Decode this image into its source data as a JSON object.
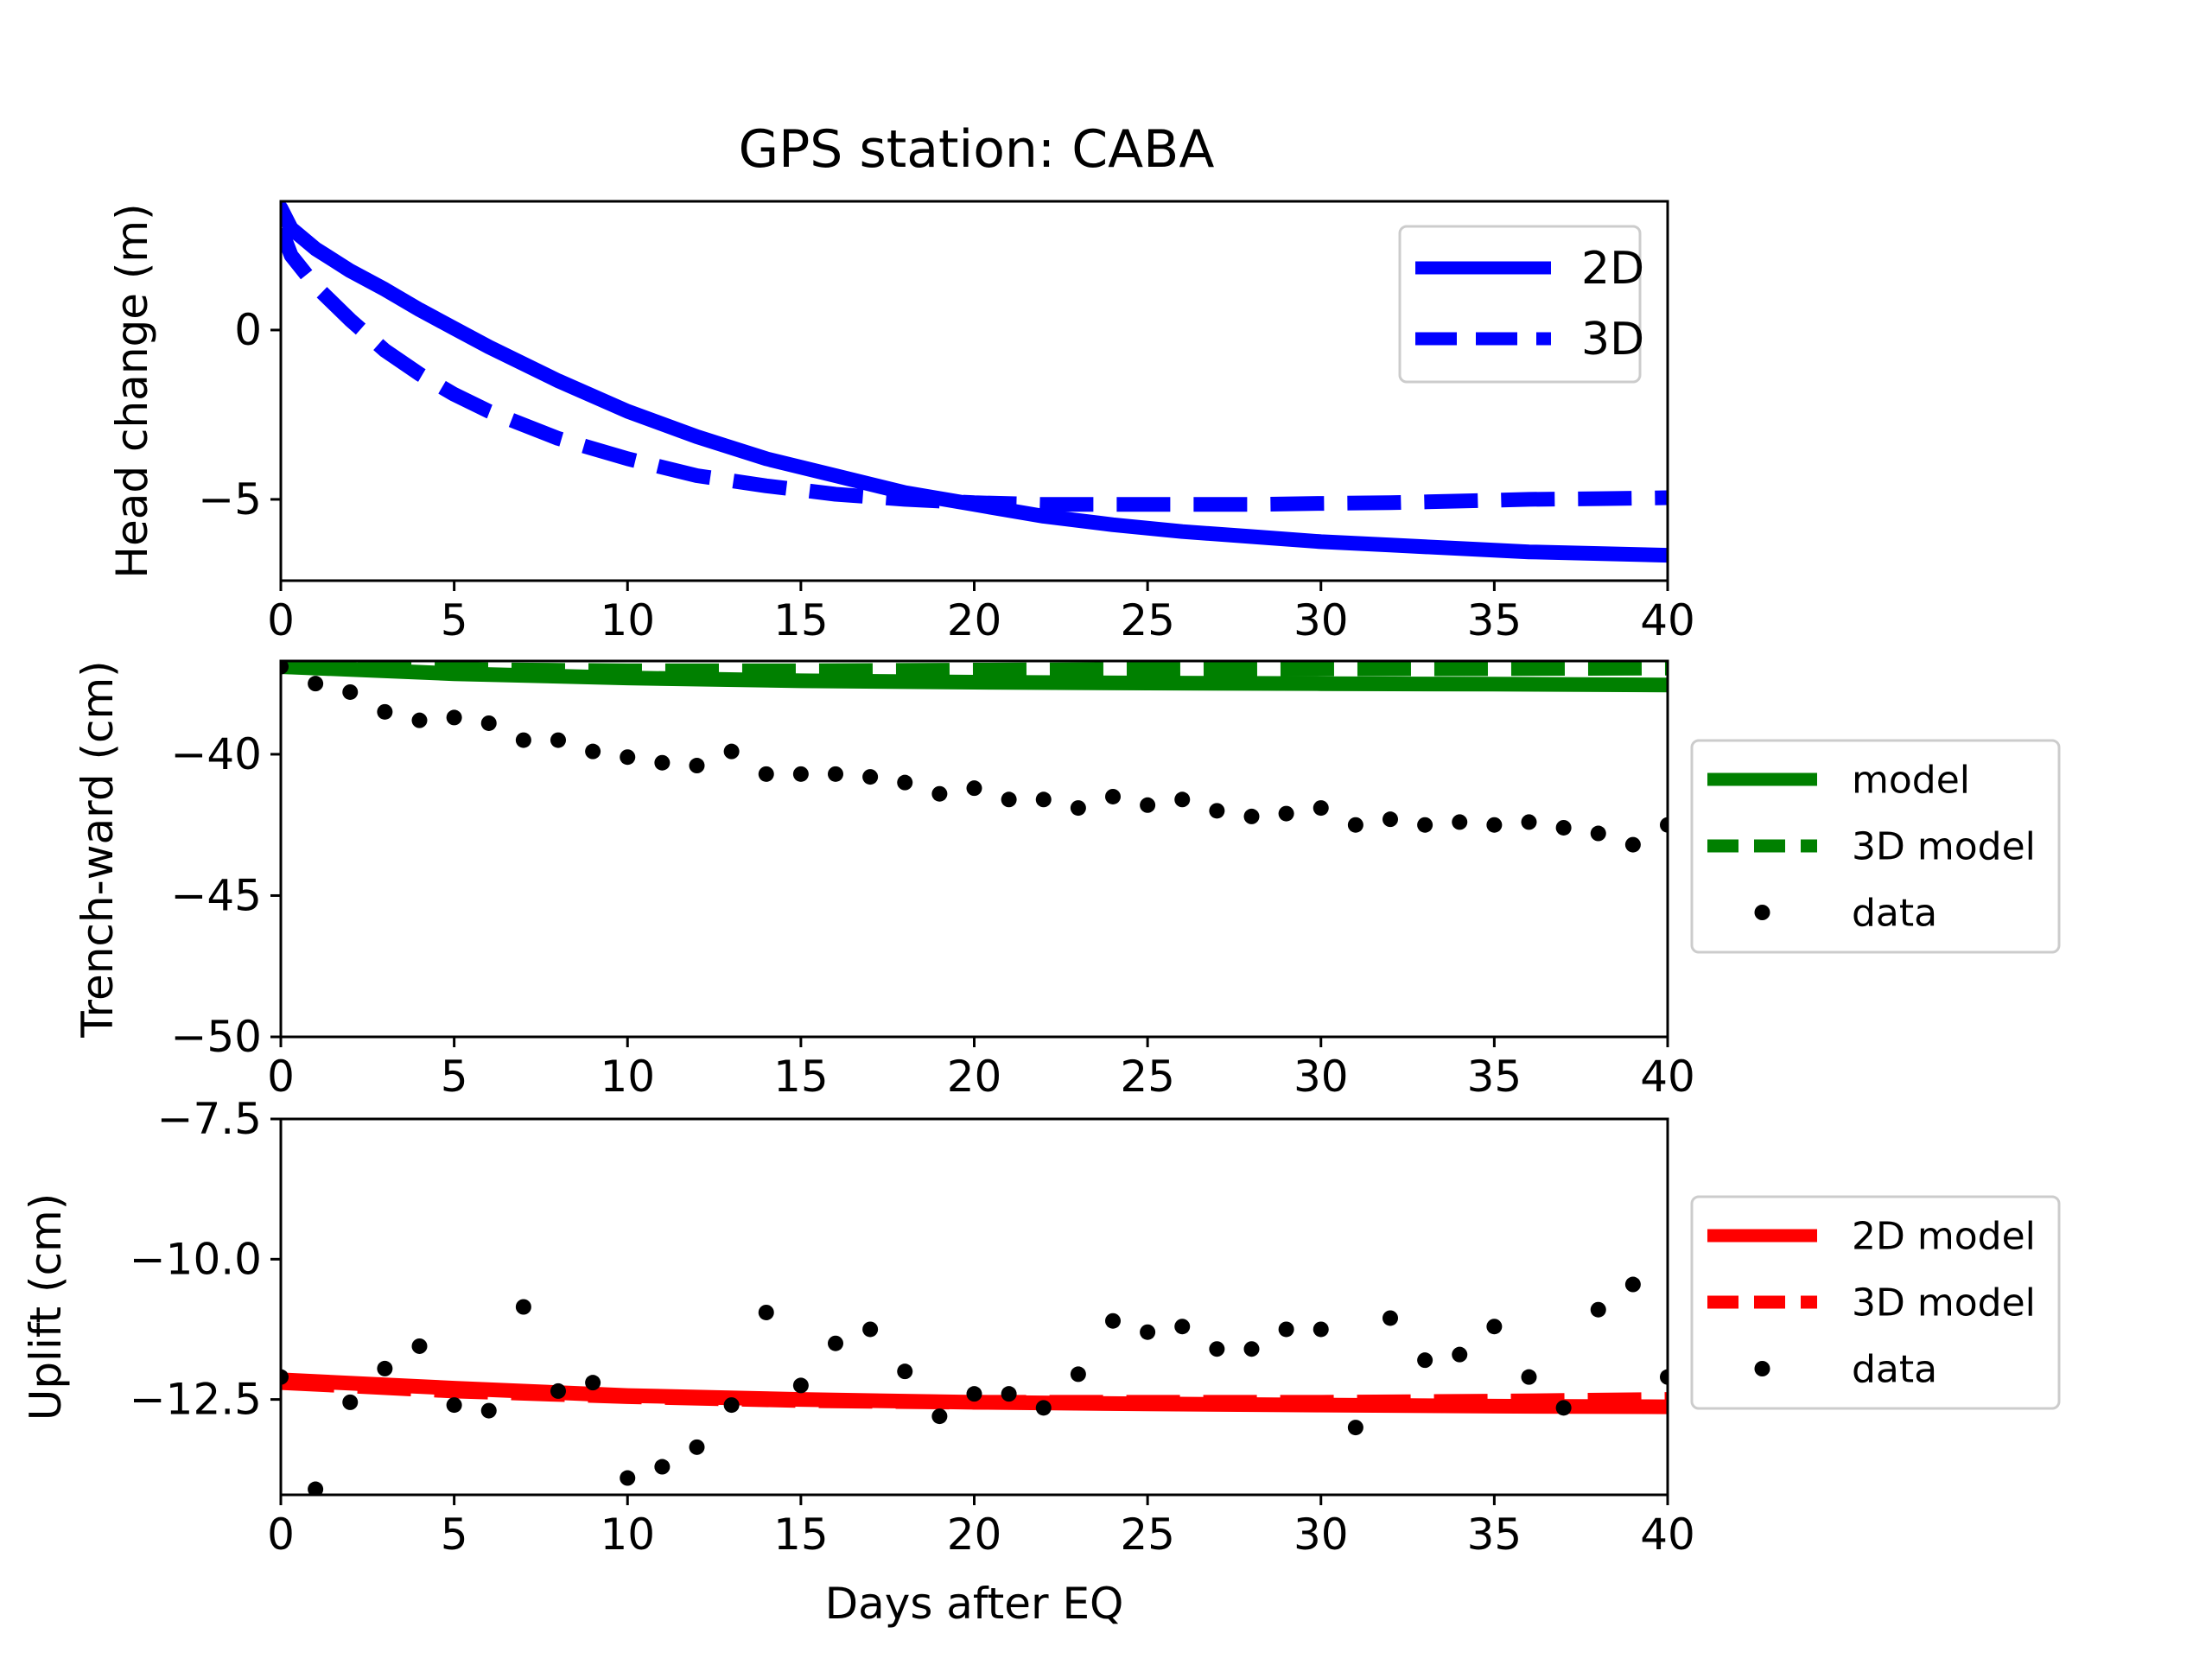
{
  "figure_title": "GPS station: CABA",
  "chart_data": [
    {
      "type": "line",
      "title": "GPS station: CABA",
      "xlabel": "",
      "ylabel": "Head change (m)",
      "xlim": [
        0,
        40
      ],
      "ylim": [
        -7.4,
        3.8
      ],
      "xticks": [
        0,
        5,
        10,
        15,
        20,
        25,
        30,
        35,
        40
      ],
      "yticks": [
        0,
        -5
      ],
      "ytick_labels": [
        "0",
        "−5"
      ],
      "grid": false,
      "legend_position": "top-right",
      "series": [
        {
          "name": "2D",
          "style": "solid",
          "color": "#0000ff",
          "x": [
            0,
            0.3,
            1,
            2,
            3,
            4,
            5,
            6,
            8,
            10,
            12,
            14,
            16,
            18,
            20,
            22,
            24,
            26,
            28,
            30,
            32,
            34,
            36,
            38,
            40
          ],
          "y": [
            3.6,
            3.0,
            2.4,
            1.75,
            1.2,
            0.6,
            0.05,
            -0.5,
            -1.5,
            -2.4,
            -3.15,
            -3.8,
            -4.3,
            -4.8,
            -5.15,
            -5.5,
            -5.75,
            -5.95,
            -6.1,
            -6.25,
            -6.35,
            -6.45,
            -6.55,
            -6.6,
            -6.65
          ]
        },
        {
          "name": "3D",
          "style": "dashed",
          "color": "#0000ff",
          "x": [
            0,
            0.3,
            1,
            2,
            3,
            4,
            5,
            6,
            8,
            10,
            12,
            14,
            16,
            18,
            20,
            22,
            24,
            26,
            28,
            30,
            32,
            34,
            36,
            38,
            40
          ],
          "y": [
            3.0,
            2.2,
            1.3,
            0.3,
            -0.6,
            -1.3,
            -1.9,
            -2.4,
            -3.2,
            -3.8,
            -4.3,
            -4.6,
            -4.85,
            -5.0,
            -5.1,
            -5.15,
            -5.15,
            -5.15,
            -5.15,
            -5.12,
            -5.1,
            -5.05,
            -5.0,
            -4.98,
            -4.95
          ]
        }
      ]
    },
    {
      "type": "line",
      "xlabel": "",
      "ylabel": "Trench-ward (cm)",
      "xlim": [
        0,
        40
      ],
      "ylim": [
        -50,
        -36.7
      ],
      "xticks": [
        0,
        5,
        10,
        15,
        20,
        25,
        30,
        35,
        40
      ],
      "yticks": [
        -40,
        -45,
        -50
      ],
      "ytick_labels": [
        "−40",
        "−45",
        "−50"
      ],
      "grid": false,
      "legend_position": "outside-right",
      "series": [
        {
          "name": "model",
          "style": "solid",
          "color": "#008000",
          "x": [
            0,
            5,
            10,
            15,
            20,
            25,
            30,
            35,
            40
          ],
          "y": [
            -36.9,
            -37.15,
            -37.3,
            -37.4,
            -37.45,
            -37.48,
            -37.5,
            -37.52,
            -37.55
          ]
        },
        {
          "name": "3D model",
          "style": "dashed",
          "color": "#008000",
          "x": [
            0,
            5,
            10,
            15,
            20,
            25,
            30,
            35,
            40
          ],
          "y": [
            -36.9,
            -37.0,
            -37.05,
            -37.05,
            -37.02,
            -37.0,
            -36.98,
            -36.97,
            -36.95
          ]
        },
        {
          "name": "data",
          "style": "points",
          "color": "#000000",
          "x": [
            0,
            1,
            2,
            3,
            4,
            5,
            6,
            7,
            8,
            9,
            10,
            11,
            12,
            13,
            14,
            15,
            16,
            17,
            18,
            19,
            20,
            21,
            22,
            23,
            24,
            25,
            26,
            27,
            28,
            29,
            30,
            31,
            32,
            33,
            34,
            35,
            36,
            37,
            38,
            39,
            40
          ],
          "y": [
            -36.9,
            -37.5,
            -37.8,
            -38.5,
            -38.8,
            -38.7,
            -38.9,
            -39.5,
            -39.5,
            -39.9,
            -40.1,
            -40.3,
            -40.4,
            -39.9,
            -40.7,
            -40.7,
            -40.7,
            -40.8,
            -41.0,
            -41.4,
            -41.2,
            -41.6,
            -41.6,
            -41.9,
            -41.5,
            -41.8,
            -41.6,
            -42.0,
            -42.2,
            -42.1,
            -41.9,
            -42.5,
            -42.3,
            -42.5,
            -42.4,
            -42.5,
            -42.4,
            -42.6,
            -42.8,
            -43.2,
            -42.5
          ]
        }
      ]
    },
    {
      "type": "line",
      "xlabel": "Days after EQ",
      "ylabel": "Uplift (cm)",
      "xlim": [
        0,
        40
      ],
      "ylim": [
        -14.2,
        -7.5
      ],
      "xticks": [
        0,
        5,
        10,
        15,
        20,
        25,
        30,
        35,
        40
      ],
      "yticks": [
        -7.5,
        -10.0,
        -12.5
      ],
      "ytick_labels": [
        "−7.5",
        "−10.0",
        "−12.5"
      ],
      "grid": false,
      "legend_position": "outside-right",
      "series": [
        {
          "name": "2D model",
          "style": "solid",
          "color": "#ff0000",
          "x": [
            0,
            5,
            10,
            15,
            20,
            25,
            30,
            35,
            40
          ],
          "y": [
            -12.15,
            -12.3,
            -12.43,
            -12.5,
            -12.55,
            -12.58,
            -12.6,
            -12.62,
            -12.63
          ]
        },
        {
          "name": "3D model",
          "style": "dashed",
          "color": "#ff0000",
          "x": [
            0,
            5,
            10,
            15,
            20,
            25,
            30,
            35,
            40
          ],
          "y": [
            -12.2,
            -12.35,
            -12.45,
            -12.52,
            -12.55,
            -12.55,
            -12.55,
            -12.53,
            -12.5
          ]
        },
        {
          "name": "data",
          "style": "points",
          "color": "#000000",
          "x": [
            0,
            1,
            2,
            3,
            4,
            5,
            6,
            7,
            8,
            9,
            10,
            11,
            12,
            13,
            14,
            15,
            16,
            17,
            18,
            19,
            20,
            21,
            22,
            23,
            24,
            25,
            26,
            27,
            28,
            29,
            30,
            31,
            32,
            33,
            34,
            35,
            36,
            37,
            38,
            39,
            40
          ],
          "y": [
            -12.1,
            -14.1,
            -12.55,
            -11.95,
            -11.55,
            -12.6,
            -12.7,
            -10.85,
            -12.35,
            -12.2,
            -13.9,
            -13.7,
            -13.35,
            -12.6,
            -10.95,
            -12.25,
            -11.5,
            -11.25,
            -12.0,
            -12.8,
            -12.4,
            -12.4,
            -12.65,
            -12.05,
            -11.1,
            -11.3,
            -11.2,
            -11.6,
            -11.6,
            -11.25,
            -11.25,
            -13.0,
            -11.05,
            -11.8,
            -11.7,
            -11.2,
            -12.1,
            -12.65,
            -10.9,
            -10.45,
            -12.1
          ]
        }
      ]
    }
  ]
}
